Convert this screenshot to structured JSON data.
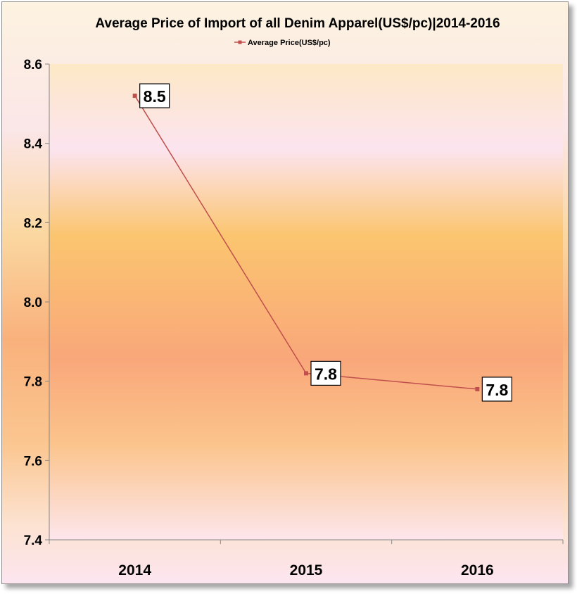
{
  "chart_data": {
    "type": "line",
    "title": "Average Price of Import of all Denim Apparel(US$/pc)|2014-2016",
    "xlabel": "",
    "ylabel": "",
    "categories": [
      "2014",
      "2015",
      "2016"
    ],
    "series": [
      {
        "name": "Average Price(US$/pc)",
        "values": [
          8.52,
          7.82,
          7.78
        ],
        "data_labels": [
          "8.5",
          "7.8",
          "7.8"
        ],
        "color": "#c0504d"
      }
    ],
    "ylim": [
      7.4,
      8.6
    ],
    "yticks": [
      "7.4",
      "7.6",
      "7.8",
      "8.0",
      "8.2",
      "8.4",
      "8.6"
    ],
    "grid": false,
    "legend_position": "top"
  }
}
